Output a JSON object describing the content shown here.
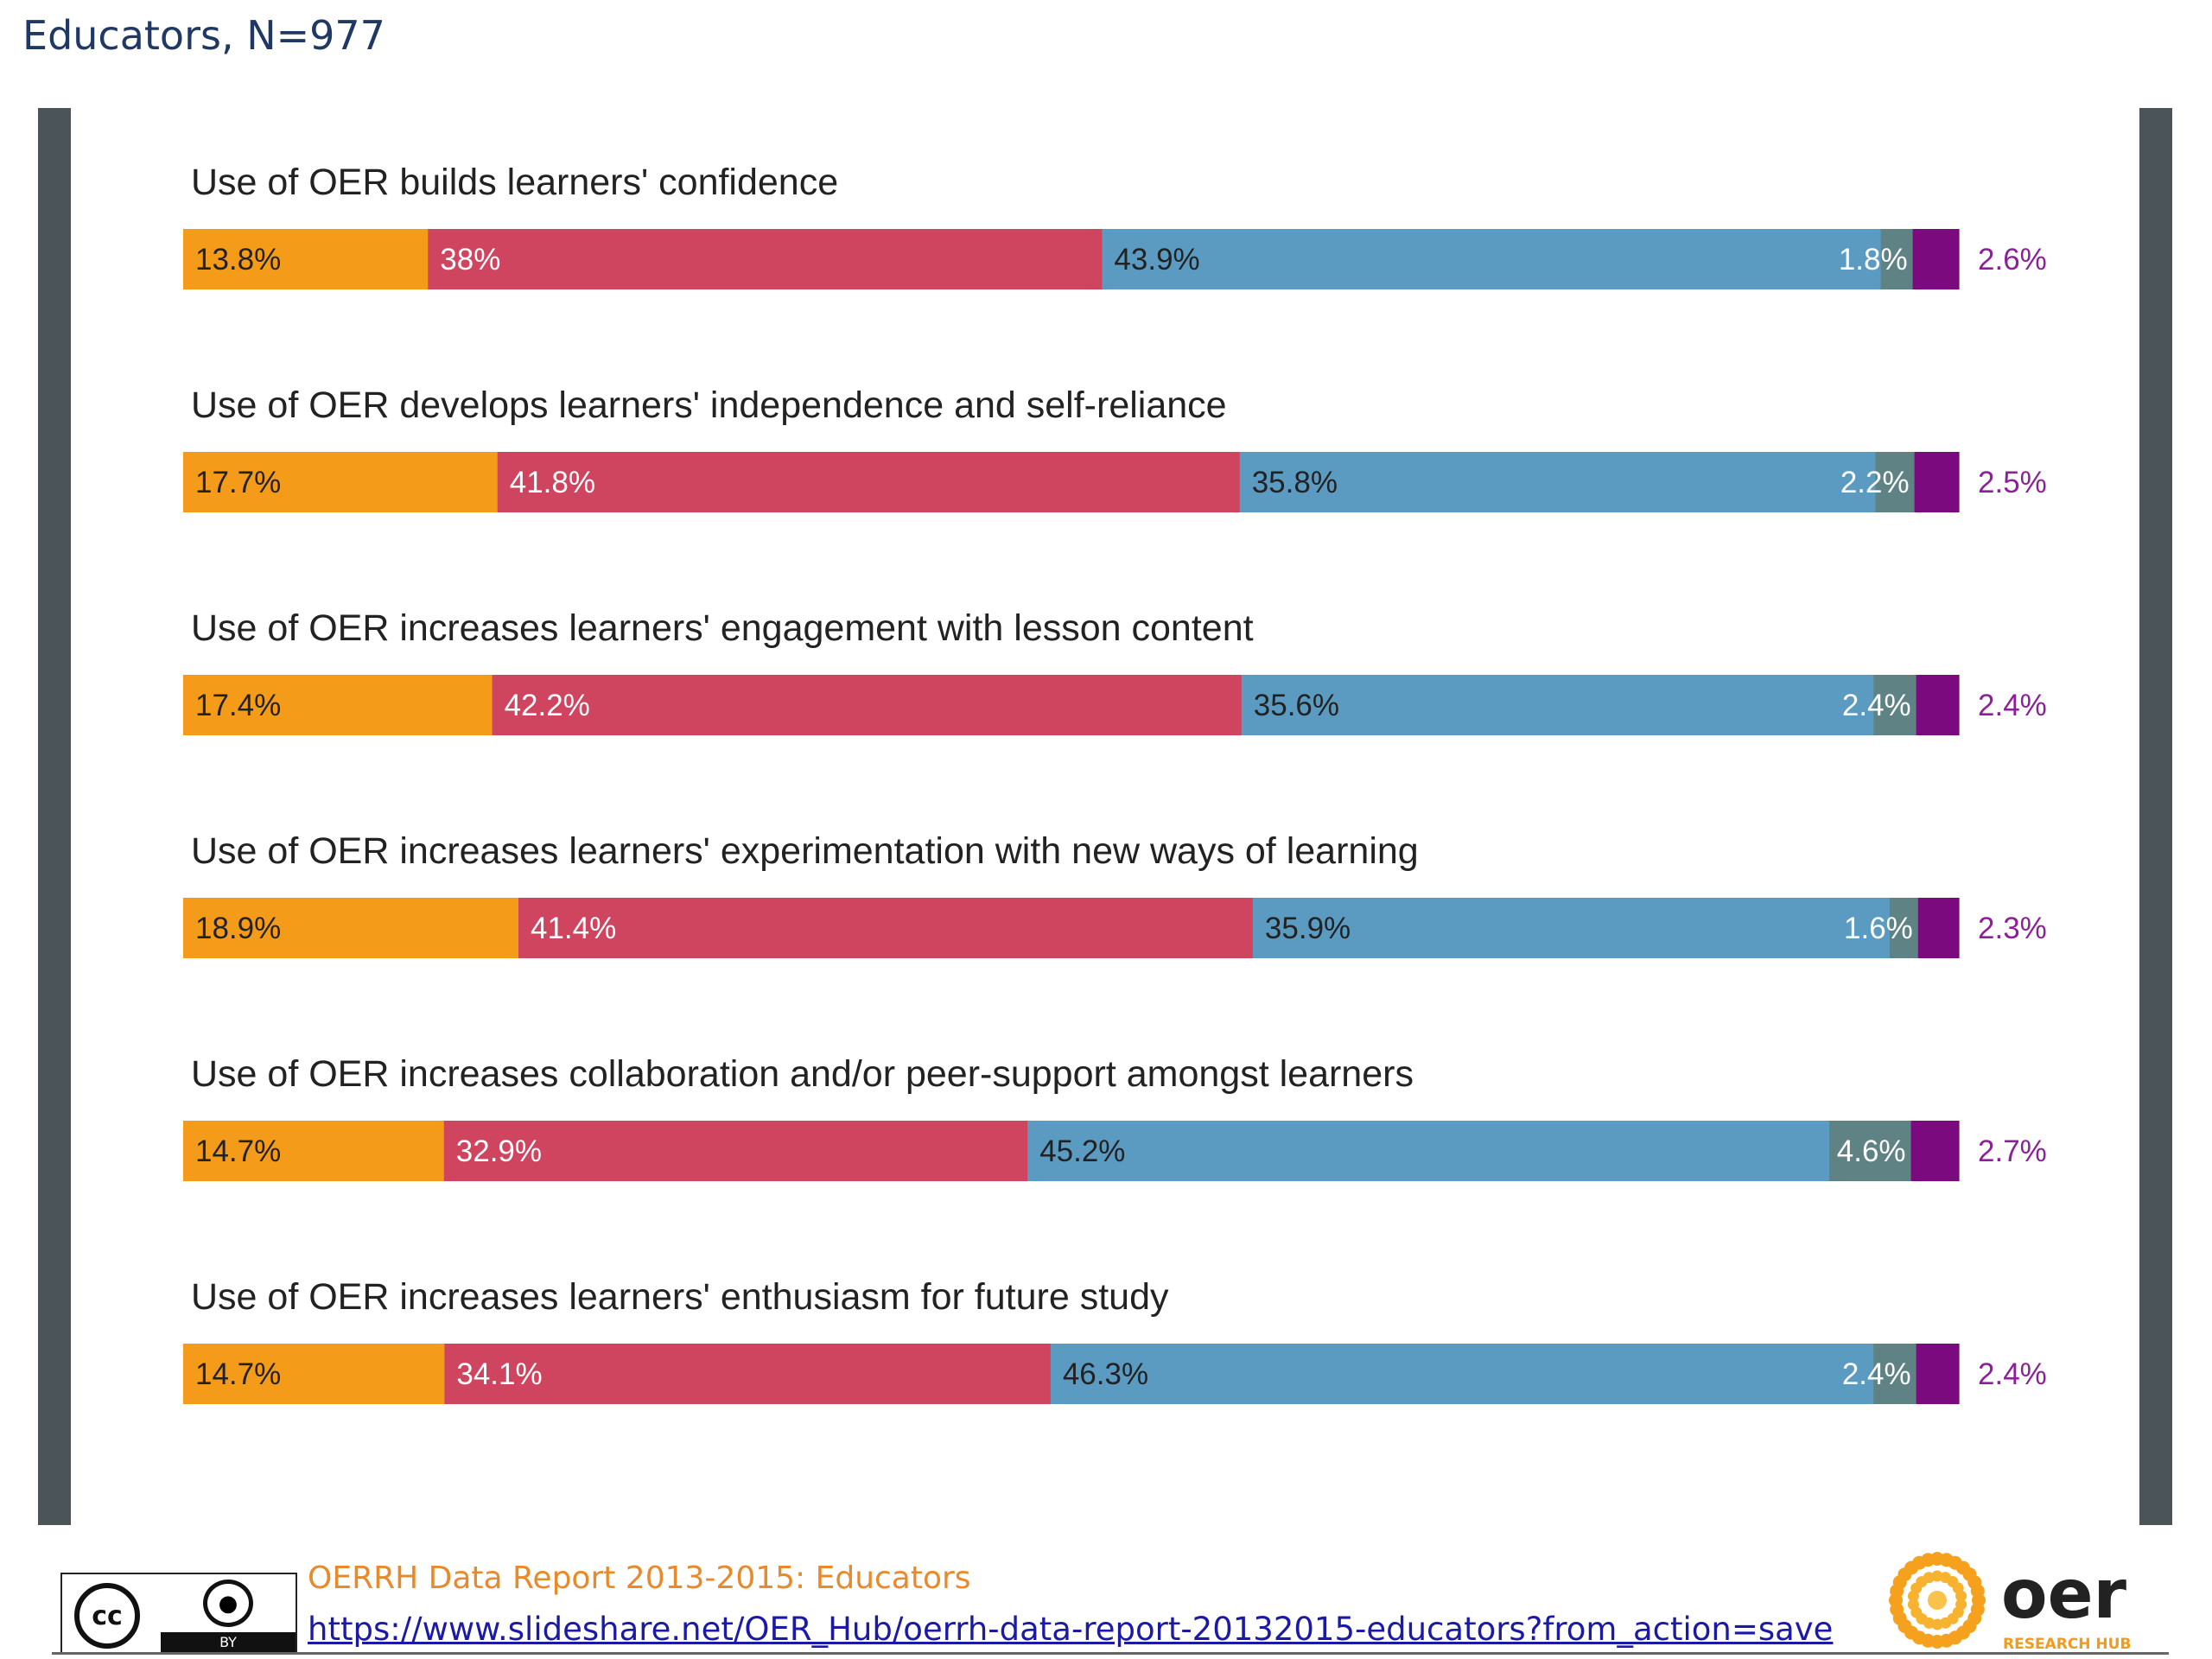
{
  "title": "Educators, N=977",
  "colors": {
    "segments": [
      "#f49c1a",
      "#cf455f",
      "#5b9bc2",
      "#5f8285",
      "#7b0a7e"
    ],
    "outside_label": "#8e1f9a",
    "side_bars": "#4a5459"
  },
  "chart_data": {
    "type": "bar",
    "orientation": "horizontal",
    "stacked": true,
    "scale": "percent",
    "categories": [
      "Use of OER builds learners' confidence",
      "Use of OER develops learners' independence and self-reliance",
      "Use of OER increases learners' engagement with lesson content",
      "Use of OER increases learners' experimentation with new ways of learning",
      "Use of OER increases collaboration and/or peer-support amongst learners",
      "Use of OER increases learners' enthusiasm for future study"
    ],
    "series": [
      {
        "values": [
          13.8,
          17.7,
          17.4,
          18.9,
          14.7,
          14.7
        ],
        "labels": [
          "13.8%",
          "17.7%",
          "17.4%",
          "18.9%",
          "14.7%",
          "14.7%"
        ]
      },
      {
        "values": [
          38,
          41.8,
          42.2,
          41.4,
          32.9,
          34.1
        ],
        "labels": [
          "38%",
          "41.8%",
          "42.2%",
          "41.4%",
          "32.9%",
          "34.1%"
        ]
      },
      {
        "values": [
          43.9,
          35.8,
          35.6,
          35.9,
          45.2,
          46.3
        ],
        "labels": [
          "43.9%",
          "35.8%",
          "35.6%",
          "35.9%",
          "45.2%",
          "46.3%"
        ]
      },
      {
        "values": [
          1.8,
          2.2,
          2.4,
          1.6,
          4.6,
          2.4
        ],
        "labels": [
          "1.8%",
          "2.2%",
          "2.4%",
          "1.6%",
          "4.6%",
          "2.4%"
        ]
      },
      {
        "values": [
          2.6,
          2.5,
          2.4,
          2.3,
          2.7,
          2.4
        ],
        "labels": [
          "2.6%",
          "2.5%",
          "2.4%",
          "2.3%",
          "2.7%",
          "2.4%"
        ]
      }
    ],
    "legend": "none",
    "grid": false
  },
  "footer": {
    "license_cc": "cc",
    "license_by": "BY",
    "report": "OERRH Data Report 2013-2015: Educators",
    "link": "https://www.slideshare.net/OER_Hub/oerrh-data-report-20132015-educators?from_action=save",
    "logo_text": "oer",
    "logo_subtext": "RESEARCH HUB"
  }
}
